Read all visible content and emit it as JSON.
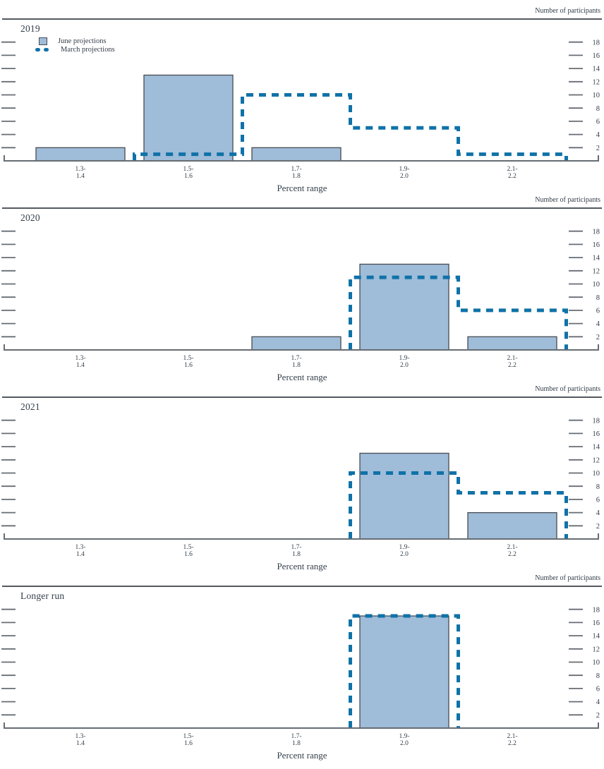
{
  "figure": {
    "ylabel": "Number of participants",
    "xlabel": "Percent range"
  },
  "legend": {
    "june_label": "June projections",
    "march_label": "March projections"
  },
  "colors": {
    "bar_fill": "#9fbcd9",
    "bar_border": "#474c52",
    "dash_blue": "#0f72a8",
    "axis_gray": "#666d73",
    "rule_gray": "#53595f",
    "text": "#333e49"
  },
  "chart_data": [
    {
      "type": "bar",
      "title": "2019",
      "categories": [
        "1.3–1.4",
        "1.5–1.6",
        "1.7–1.8",
        "1.9–2.0",
        "2.1–2.2"
      ],
      "categories_two_line": [
        [
          "1.3-",
          "1.4"
        ],
        [
          "1.5-",
          "1.6"
        ],
        [
          "1.7-",
          "1.8"
        ],
        [
          "1.9-",
          "2.0"
        ],
        [
          "2.1-",
          "2.2"
        ]
      ],
      "series": [
        {
          "name": "June projections",
          "style": "bar",
          "values": [
            2,
            13,
            2,
            0,
            0
          ]
        },
        {
          "name": "March projections",
          "style": "dashed-step",
          "values": [
            0,
            1,
            10,
            5,
            1
          ]
        }
      ],
      "xlabel": "Percent range",
      "ylabel": "Number of participants",
      "ylim": [
        0,
        19.5
      ],
      "yticks": [
        2,
        4,
        6,
        8,
        10,
        12,
        14,
        16,
        18
      ],
      "grid": false,
      "legend": true,
      "legend_position": "top-left"
    },
    {
      "type": "bar",
      "title": "2020",
      "categories": [
        "1.3–1.4",
        "1.5–1.6",
        "1.7–1.8",
        "1.9–2.0",
        "2.1–2.2"
      ],
      "categories_two_line": [
        [
          "1.3-",
          "1.4"
        ],
        [
          "1.5-",
          "1.6"
        ],
        [
          "1.7-",
          "1.8"
        ],
        [
          "1.9-",
          "2.0"
        ],
        [
          "2.1-",
          "2.2"
        ]
      ],
      "series": [
        {
          "name": "June projections",
          "style": "bar",
          "values": [
            0,
            0,
            2,
            13,
            2
          ]
        },
        {
          "name": "March projections",
          "style": "dashed-step",
          "values": [
            0,
            0,
            0,
            11,
            6
          ]
        }
      ],
      "xlabel": "Percent range",
      "ylabel": "Number of participants",
      "ylim": [
        0,
        19.5
      ],
      "yticks": [
        2,
        4,
        6,
        8,
        10,
        12,
        14,
        16,
        18
      ],
      "grid": false,
      "legend": false
    },
    {
      "type": "bar",
      "title": "2021",
      "categories": [
        "1.3–1.4",
        "1.5–1.6",
        "1.7–1.8",
        "1.9–2.0",
        "2.1–2.2"
      ],
      "categories_two_line": [
        [
          "1.3-",
          "1.4"
        ],
        [
          "1.5-",
          "1.6"
        ],
        [
          "1.7-",
          "1.8"
        ],
        [
          "1.9-",
          "2.0"
        ],
        [
          "2.1-",
          "2.2"
        ]
      ],
      "series": [
        {
          "name": "June projections",
          "style": "bar",
          "values": [
            0,
            0,
            0,
            13,
            4
          ]
        },
        {
          "name": "March projections",
          "style": "dashed-step",
          "values": [
            0,
            0,
            0,
            10,
            7
          ]
        }
      ],
      "xlabel": "Percent range",
      "ylabel": "Number of participants",
      "ylim": [
        0,
        19.5
      ],
      "yticks": [
        2,
        4,
        6,
        8,
        10,
        12,
        14,
        16,
        18
      ],
      "grid": false,
      "legend": false
    },
    {
      "type": "bar",
      "title": "Longer run",
      "categories": [
        "1.3–1.4",
        "1.5–1.6",
        "1.7–1.8",
        "1.9–2.0",
        "2.1–2.2"
      ],
      "categories_two_line": [
        [
          "1.3-",
          "1.4"
        ],
        [
          "1.5-",
          "1.6"
        ],
        [
          "1.7-",
          "1.8"
        ],
        [
          "1.9-",
          "2.0"
        ],
        [
          "2.1-",
          "2.2"
        ]
      ],
      "series": [
        {
          "name": "June projections",
          "style": "bar",
          "values": [
            0,
            0,
            0,
            17,
            0
          ]
        },
        {
          "name": "March projections",
          "style": "dashed-step",
          "values": [
            0,
            0,
            0,
            17,
            0
          ]
        }
      ],
      "xlabel": "Percent range",
      "ylabel": "Number of participants",
      "ylim": [
        0,
        19.5
      ],
      "yticks": [
        2,
        4,
        6,
        8,
        10,
        12,
        14,
        16,
        18
      ],
      "grid": false,
      "legend": false
    }
  ]
}
